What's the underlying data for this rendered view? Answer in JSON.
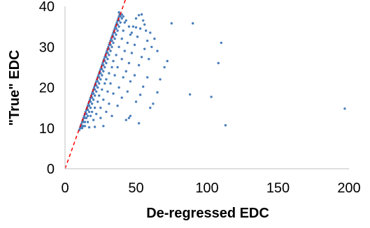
{
  "chart_data": {
    "type": "scatter",
    "title": "",
    "xlabel": "De-regressed EDC",
    "ylabel": "\"True\" EDC",
    "xlim": [
      0,
      200
    ],
    "ylim": [
      0,
      40
    ],
    "xticks": [
      "0",
      "50",
      "100",
      "150",
      "200"
    ],
    "yticks": [
      "0",
      "10",
      "20",
      "30",
      "40"
    ],
    "grid": false,
    "legend": "none",
    "point_color": "#4a7ebb",
    "reference_line": {
      "style": "dashed",
      "color": "#ff0000",
      "points": [
        [
          0,
          0
        ],
        [
          45,
          44
        ]
      ]
    },
    "series": [
      {
        "name": "",
        "points": [
          [
            10,
            9.5
          ],
          [
            10.5,
            10
          ],
          [
            11,
            10.5
          ],
          [
            11.5,
            11
          ],
          [
            12,
            11.5
          ],
          [
            12.5,
            12
          ],
          [
            13,
            12.5
          ],
          [
            13.5,
            13
          ],
          [
            14,
            13.5
          ],
          [
            14.5,
            14
          ],
          [
            15,
            14.5
          ],
          [
            15.5,
            15
          ],
          [
            16,
            15.5
          ],
          [
            16.5,
            16
          ],
          [
            17,
            16.5
          ],
          [
            17.5,
            17
          ],
          [
            18,
            17.5
          ],
          [
            18.5,
            18
          ],
          [
            19,
            18.5
          ],
          [
            19.5,
            19
          ],
          [
            20,
            19.5
          ],
          [
            20.5,
            20
          ],
          [
            21,
            20.5
          ],
          [
            21.5,
            21
          ],
          [
            22,
            21.5
          ],
          [
            22.5,
            22
          ],
          [
            23,
            22.5
          ],
          [
            23.5,
            23
          ],
          [
            24,
            23.5
          ],
          [
            24.5,
            24
          ],
          [
            25,
            24.5
          ],
          [
            25.5,
            25
          ],
          [
            26,
            25.5
          ],
          [
            26.5,
            26
          ],
          [
            27,
            26.5
          ],
          [
            27.5,
            27
          ],
          [
            28,
            27.5
          ],
          [
            28.5,
            28
          ],
          [
            29,
            28.5
          ],
          [
            29.5,
            29
          ],
          [
            30,
            29.5
          ],
          [
            30.5,
            30
          ],
          [
            31,
            30.5
          ],
          [
            31.5,
            31
          ],
          [
            32,
            31.5
          ],
          [
            32.5,
            32
          ],
          [
            33,
            32.5
          ],
          [
            33.5,
            33
          ],
          [
            34,
            33.5
          ],
          [
            34.5,
            34
          ],
          [
            35,
            34.5
          ],
          [
            35.5,
            35
          ],
          [
            36,
            35.5
          ],
          [
            36.5,
            36
          ],
          [
            37,
            36.5
          ],
          [
            37.5,
            37
          ],
          [
            38,
            37.5
          ],
          [
            38.5,
            38
          ],
          [
            11,
            10
          ],
          [
            12,
            10.5
          ],
          [
            13,
            11.5
          ],
          [
            14,
            12.5
          ],
          [
            15,
            13.5
          ],
          [
            16,
            14.5
          ],
          [
            17,
            15.5
          ],
          [
            18,
            16.5
          ],
          [
            19,
            17.5
          ],
          [
            20,
            18.5
          ],
          [
            21,
            19.5
          ],
          [
            22,
            20.5
          ],
          [
            23,
            21.5
          ],
          [
            24,
            22.5
          ],
          [
            25,
            23.5
          ],
          [
            26,
            24.5
          ],
          [
            27,
            25.5
          ],
          [
            28,
            26.5
          ],
          [
            29,
            27.5
          ],
          [
            30,
            28.5
          ],
          [
            31,
            29.5
          ],
          [
            32,
            30.5
          ],
          [
            33,
            31.5
          ],
          [
            34,
            32.5
          ],
          [
            35,
            33.5
          ],
          [
            36,
            34.5
          ],
          [
            37,
            35.5
          ],
          [
            38,
            36.5
          ],
          [
            39,
            37.5
          ],
          [
            12,
            10
          ],
          [
            13,
            10.5
          ],
          [
            14,
            11.5
          ],
          [
            15,
            12.5
          ],
          [
            16,
            13
          ],
          [
            17,
            14
          ],
          [
            18,
            15
          ],
          [
            19,
            16
          ],
          [
            20,
            17
          ],
          [
            21,
            18
          ],
          [
            22,
            19
          ],
          [
            23,
            20
          ],
          [
            24,
            21
          ],
          [
            25,
            22
          ],
          [
            26,
            23
          ],
          [
            27,
            24
          ],
          [
            28,
            25
          ],
          [
            29,
            26
          ],
          [
            30,
            27
          ],
          [
            31,
            28
          ],
          [
            32,
            29
          ],
          [
            33,
            30
          ],
          [
            34,
            31
          ],
          [
            35,
            32
          ],
          [
            36,
            33
          ],
          [
            37,
            34
          ],
          [
            38,
            35
          ],
          [
            39,
            36
          ],
          [
            40,
            37
          ],
          [
            14,
            10.5
          ],
          [
            16,
            11.5
          ],
          [
            18,
            13
          ],
          [
            19,
            14
          ],
          [
            21,
            15
          ],
          [
            23,
            16.5
          ],
          [
            24,
            18
          ],
          [
            26,
            19.5
          ],
          [
            28,
            21
          ],
          [
            29,
            22
          ],
          [
            31,
            23.5
          ],
          [
            33,
            25
          ],
          [
            34,
            26.5
          ],
          [
            36,
            28
          ],
          [
            38,
            30
          ],
          [
            40,
            32
          ],
          [
            41,
            34
          ],
          [
            42,
            36
          ],
          [
            17,
            10.2
          ],
          [
            20,
            12
          ],
          [
            22,
            13.5
          ],
          [
            25,
            15
          ],
          [
            27,
            17
          ],
          [
            30,
            19
          ],
          [
            32,
            21
          ],
          [
            35,
            23
          ],
          [
            37,
            25
          ],
          [
            40,
            27
          ],
          [
            42,
            29
          ],
          [
            44,
            31
          ],
          [
            46,
            33
          ],
          [
            48,
            35
          ],
          [
            50,
            37
          ],
          [
            21,
            10.3
          ],
          [
            25,
            12.5
          ],
          [
            29,
            14
          ],
          [
            31,
            16
          ],
          [
            34,
            18.5
          ],
          [
            38,
            20
          ],
          [
            41,
            22.5
          ],
          [
            43,
            24
          ],
          [
            45,
            26
          ],
          [
            47,
            28.5
          ],
          [
            49,
            30.5
          ],
          [
            51,
            32.5
          ],
          [
            53,
            34.5
          ],
          [
            55,
            36.5
          ],
          [
            27,
            10.5
          ],
          [
            33,
            13
          ],
          [
            37,
            15.5
          ],
          [
            40,
            17.5
          ],
          [
            44,
            19
          ],
          [
            46,
            21.5
          ],
          [
            49,
            23
          ],
          [
            52,
            25.5
          ],
          [
            54,
            27.5
          ],
          [
            56,
            29.5
          ],
          [
            58,
            31.5
          ],
          [
            60,
            33.5
          ],
          [
            56,
            35.5
          ],
          [
            43,
            12
          ],
          [
            46,
            13
          ],
          [
            50,
            16.5
          ],
          [
            53,
            18.2
          ],
          [
            55,
            20.2
          ],
          [
            58,
            22.5
          ],
          [
            59,
            27
          ],
          [
            61,
            30
          ],
          [
            63,
            32
          ],
          [
            57,
            34
          ],
          [
            45,
            12.5
          ],
          [
            52,
            11.2
          ],
          [
            60,
            15
          ],
          [
            62,
            16
          ],
          [
            65,
            18.8
          ],
          [
            67,
            22
          ],
          [
            70,
            25
          ],
          [
            72,
            26.5
          ],
          [
            65,
            29
          ],
          [
            75,
            35.8
          ],
          [
            88,
            18.3
          ],
          [
            90,
            35.8
          ],
          [
            103,
            17.7
          ],
          [
            108,
            26
          ],
          [
            110,
            31
          ],
          [
            113,
            10.7
          ],
          [
            197,
            14.8
          ],
          [
            40,
            38
          ],
          [
            38,
            38.5
          ],
          [
            41,
            37.5
          ],
          [
            43,
            36.5
          ],
          [
            45,
            35
          ],
          [
            47,
            33.5
          ],
          [
            50,
            34.8
          ],
          [
            52,
            37.8
          ],
          [
            54,
            38
          ]
        ]
      }
    ]
  }
}
